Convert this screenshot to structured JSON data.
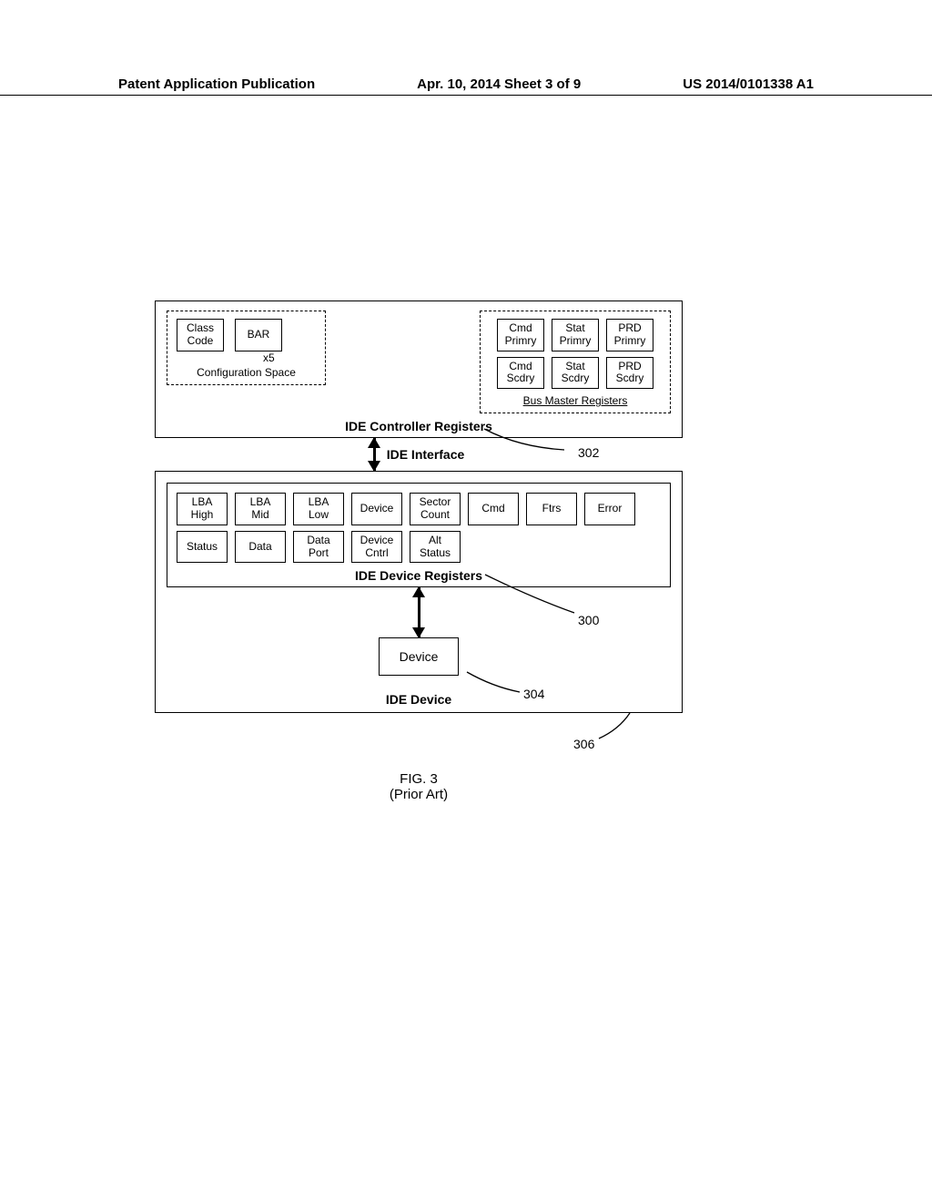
{
  "header": {
    "left": "Patent Application Publication",
    "center": "Apr. 10, 2014  Sheet 3 of 9",
    "right": "US 2014/0101338 A1"
  },
  "controller": {
    "title": "IDE Controller Registers",
    "config_space": {
      "title": "Configuration Space",
      "class_code": "Class\nCode",
      "bar": "BAR",
      "x5": "x5"
    },
    "bus_master": {
      "title": "Bus Master Registers",
      "regs": [
        [
          "Cmd\nPrimry",
          "Stat\nPrimry",
          "PRD\nPrimry"
        ],
        [
          "Cmd\nScdry",
          "Stat\nScdry",
          "PRD\nScdry"
        ]
      ]
    }
  },
  "interface_label": "IDE  Interface",
  "device_regs": {
    "title": "IDE Device Registers",
    "row1": [
      "LBA\nHigh",
      "LBA\nMid",
      "LBA\nLow",
      "Device",
      "Sector\nCount",
      "Cmd",
      "Ftrs",
      "Error"
    ],
    "row2": [
      "Status",
      "Data",
      "Data\nPort",
      "Device\nCntrl",
      "Alt\nStatus"
    ]
  },
  "ide_device": {
    "title": "IDE Device",
    "device": "Device"
  },
  "refs": {
    "r300": "300",
    "r302": "302",
    "r304": "304",
    "r306": "306"
  },
  "figure": {
    "num": "FIG. 3",
    "sub": "(Prior Art)"
  }
}
